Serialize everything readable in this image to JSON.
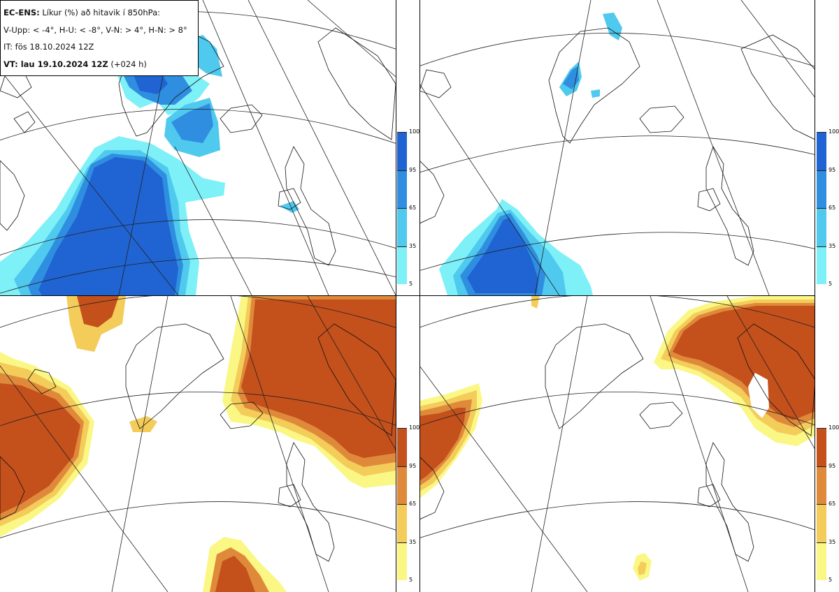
{
  "header": {
    "product": "EC-ENS:",
    "title_rest": "Líkur (%) að hitavik í 850hPa:",
    "thresholds": "V-Upp: < -4°, H-U: < -8°, V-N: > 4°, H-N: > 8°",
    "init_time": "IT: fös 18.10.2024 12Z",
    "valid_label": "VT: lau 19.10.2024 12Z",
    "lead": "(+024 h)"
  },
  "panels": [
    {
      "id": "V-Upp",
      "variable": "probability of 850hPa anomaly < -4°",
      "palette": "cold"
    },
    {
      "id": "H-U",
      "variable": "probability of 850hPa anomaly < -8°",
      "palette": "cold"
    },
    {
      "id": "V-N",
      "variable": "probability of 850hPa anomaly > 4°",
      "palette": "warm"
    },
    {
      "id": "H-N",
      "variable": "probability of 850hPa anomaly > 8°",
      "palette": "warm"
    }
  ],
  "colorbars": {
    "ticks": [
      "100",
      "95",
      "65",
      "35",
      "5"
    ],
    "cold_colors": [
      "#1f64d2",
      "#2f8ee0",
      "#4fc9ee",
      "#7ef0f8"
    ],
    "warm_colors": [
      "#c4501c",
      "#df8a3a",
      "#f3cc5a",
      "#fbf785"
    ]
  },
  "colors": {
    "cold_levels": [
      "#7ef0f8",
      "#4fc9ee",
      "#2f8ee0",
      "#1f64d2"
    ],
    "warm_levels": [
      "#fbf785",
      "#f3cc5a",
      "#df8a3a",
      "#c4501c"
    ]
  }
}
